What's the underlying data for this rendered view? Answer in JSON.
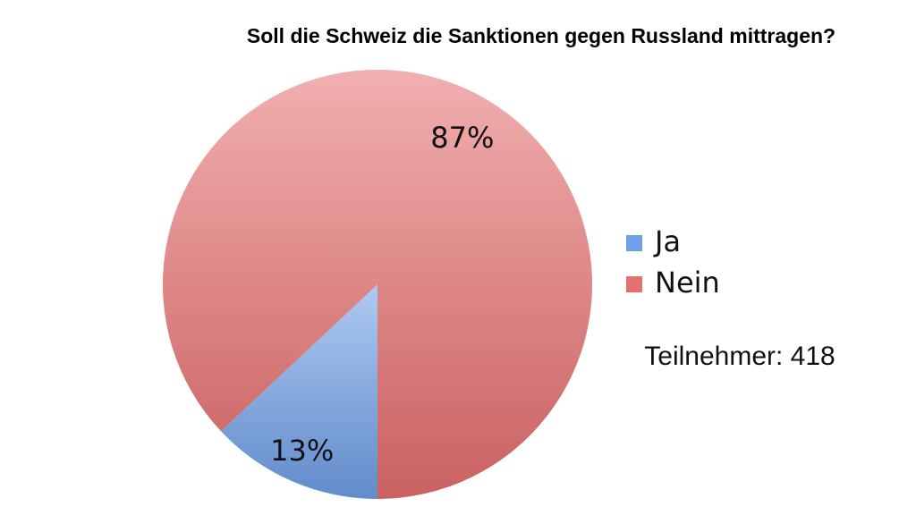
{
  "chart_data": {
    "type": "pie",
    "title": "Soll die Schweiz die Sanktionen gegen Russland mittragen?",
    "categories": [
      "Ja",
      "Nein"
    ],
    "values": [
      13,
      87
    ],
    "value_labels": [
      "13%",
      "87%"
    ],
    "colors": [
      "#6f9fe6",
      "#e66f6f"
    ],
    "legend": "right",
    "annotation": "Teilnehmer: 418"
  }
}
